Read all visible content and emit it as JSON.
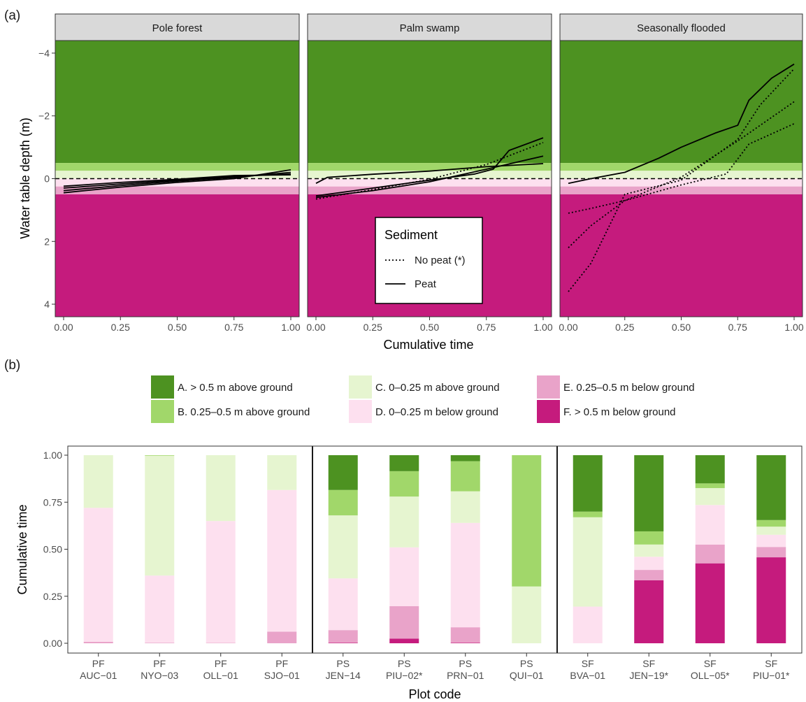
{
  "panel_labels": {
    "a": "(a)",
    "b": "(b)"
  },
  "colors": {
    "A": "#4d9221",
    "B": "#a1d76a",
    "C": "#e6f5d0",
    "D": "#fde0ef",
    "E": "#e9a3c9",
    "F": "#c51b7d"
  },
  "chart_data": [
    {
      "type": "line",
      "panel": "a",
      "facets": [
        "Pole forest",
        "Palm swamp",
        "Seasonally flooded"
      ],
      "xlabel": "Cumulative time",
      "ylabel": "Water table depth (m)",
      "xlim": [
        0,
        1
      ],
      "ylim": [
        -4.4,
        4.4
      ],
      "y_reversed": true,
      "x_ticks": [
        "0.00",
        "0.25",
        "0.50",
        "0.75",
        "1.00"
      ],
      "y_ticks": [
        "-4",
        "-2",
        "0",
        "2",
        "4"
      ],
      "background_bands": [
        {
          "class": "A",
          "from": -4.4,
          "to": -0.5
        },
        {
          "class": "B",
          "from": -0.5,
          "to": -0.25
        },
        {
          "class": "C",
          "from": -0.25,
          "to": 0
        },
        {
          "class": "D",
          "from": 0,
          "to": 0.25
        },
        {
          "class": "E",
          "from": 0.25,
          "to": 0.5
        },
        {
          "class": "F",
          "from": 0.5,
          "to": 4.4
        }
      ],
      "reference_line": 0,
      "legend": {
        "title": "Sediment",
        "position": "center",
        "entries": [
          {
            "label": "No peat (*)",
            "style": "dotted"
          },
          {
            "label": "Peat",
            "style": "solid"
          }
        ]
      },
      "series": [
        {
          "facet": "Pole forest",
          "sediment": "Peat",
          "x": [
            0,
            0.25,
            0.5,
            0.75,
            1.0
          ],
          "y": [
            0.45,
            0.27,
            0.12,
            0.0,
            -0.28
          ]
        },
        {
          "facet": "Pole forest",
          "sediment": "Peat",
          "x": [
            0,
            0.25,
            0.5,
            0.75,
            1.0
          ],
          "y": [
            0.38,
            0.22,
            0.08,
            -0.04,
            -0.2
          ]
        },
        {
          "facet": "Pole forest",
          "sediment": "Peat",
          "x": [
            0,
            0.25,
            0.5,
            0.75,
            1.0
          ],
          "y": [
            0.3,
            0.17,
            0.05,
            -0.07,
            -0.15
          ]
        },
        {
          "facet": "Pole forest",
          "sediment": "Peat",
          "x": [
            0,
            0.25,
            0.5,
            0.75,
            1.0
          ],
          "y": [
            0.24,
            0.12,
            0.02,
            -0.1,
            -0.12
          ]
        },
        {
          "facet": "Palm swamp",
          "sediment": "Peat",
          "x": [
            0,
            0.05,
            0.25,
            0.5,
            0.75,
            1.0
          ],
          "y": [
            0.15,
            -0.04,
            -0.14,
            -0.24,
            -0.38,
            -0.48
          ]
        },
        {
          "facet": "Palm swamp",
          "sediment": "Peat",
          "x": [
            0,
            0.25,
            0.5,
            0.7,
            0.78,
            0.85,
            1.0
          ],
          "y": [
            0.55,
            0.3,
            0.05,
            -0.15,
            -0.3,
            -0.9,
            -1.3
          ]
        },
        {
          "facet": "Palm swamp",
          "sediment": "Peat",
          "x": [
            0,
            0.25,
            0.5,
            0.75,
            1.0
          ],
          "y": [
            0.6,
            0.38,
            0.1,
            -0.3,
            -0.72
          ]
        },
        {
          "facet": "Palm swamp",
          "sediment": "No peat (*)",
          "x": [
            0,
            0.25,
            0.5,
            0.75,
            1.0
          ],
          "y": [
            0.65,
            0.35,
            0.02,
            -0.45,
            -1.15
          ]
        },
        {
          "facet": "Seasonally flooded",
          "sediment": "Peat",
          "x": [
            0,
            0.1,
            0.25,
            0.4,
            0.5,
            0.65,
            0.75,
            0.8,
            0.9,
            1.0
          ],
          "y": [
            0.15,
            0.0,
            -0.2,
            -0.65,
            -1.0,
            -1.45,
            -1.7,
            -2.5,
            -3.2,
            -3.65
          ]
        },
        {
          "facet": "Seasonally flooded",
          "sediment": "No peat (*)",
          "x": [
            0,
            0.1,
            0.25,
            0.5,
            0.75,
            0.85,
            1.0
          ],
          "y": [
            3.6,
            2.7,
            0.5,
            0.05,
            -1.25,
            -2.35,
            -3.5
          ]
        },
        {
          "facet": "Seasonally flooded",
          "sediment": "No peat (*)",
          "x": [
            0,
            0.1,
            0.25,
            0.5,
            0.75,
            1.0
          ],
          "y": [
            2.2,
            1.5,
            0.7,
            -0.05,
            -1.2,
            -2.45
          ]
        },
        {
          "facet": "Seasonally flooded",
          "sediment": "No peat (*)",
          "x": [
            0,
            0.1,
            0.25,
            0.5,
            0.7,
            0.8,
            1.0
          ],
          "y": [
            1.1,
            0.95,
            0.7,
            0.2,
            -0.15,
            -1.1,
            -1.75
          ]
        }
      ]
    },
    {
      "type": "bar",
      "stacked": true,
      "panel": "b",
      "xlabel": "Plot code",
      "ylabel": "Cumulative time",
      "ylim": [
        0,
        1
      ],
      "y_ticks": [
        "0.00",
        "0.25",
        "0.50",
        "0.75",
        "1.00"
      ],
      "categories": [
        [
          "PF",
          "AUC−01"
        ],
        [
          "PF",
          "NYO−03"
        ],
        [
          "PF",
          "OLL−01"
        ],
        [
          "PF",
          "SJO−01"
        ],
        [
          "PS",
          "JEN−14"
        ],
        [
          "PS",
          "PIU−02*"
        ],
        [
          "PS",
          "PRN−01"
        ],
        [
          "PS",
          "QUI−01"
        ],
        [
          "SF",
          "BVA−01"
        ],
        [
          "SF",
          "JEN−19*"
        ],
        [
          "SF",
          "OLL−05*"
        ],
        [
          "SF",
          "PIU−01*"
        ]
      ],
      "group_separators_after": [
        3,
        7
      ],
      "legend": {
        "position": "top",
        "entries": [
          {
            "key": "A",
            "label": "A. > 0.5 m above ground"
          },
          {
            "key": "B",
            "label": "B. 0.25–0.5 m above ground"
          },
          {
            "key": "C",
            "label": "C. 0–0.25 m above ground"
          },
          {
            "key": "D",
            "label": "D. 0–0.25 m below ground"
          },
          {
            "key": "E",
            "label": "E. 0.25–0.5 m below ground"
          },
          {
            "key": "F",
            "label": "F. > 0.5 m below ground"
          }
        ]
      },
      "stack_order_bottom_to_top": [
        "F",
        "E",
        "D",
        "C",
        "B",
        "A"
      ],
      "series": [
        {
          "name": "F",
          "values": [
            0,
            0,
            0,
            0,
            0.003,
            0.025,
            0.003,
            0,
            0,
            0.335,
            0.425,
            0.457
          ]
        },
        {
          "name": "E",
          "values": [
            0.008,
            0.003,
            0.002,
            0.062,
            0.067,
            0.172,
            0.082,
            0,
            0,
            0.055,
            0.1,
            0.055
          ]
        },
        {
          "name": "D",
          "values": [
            0.712,
            0.357,
            0.648,
            0.753,
            0.275,
            0.313,
            0.555,
            0,
            0.195,
            0.07,
            0.21,
            0.065
          ]
        },
        {
          "name": "C",
          "values": [
            0.28,
            0.637,
            0.35,
            0.185,
            0.335,
            0.27,
            0.168,
            0.302,
            0.475,
            0.065,
            0.09,
            0.043
          ]
        },
        {
          "name": "B",
          "values": [
            0,
            0.003,
            0,
            0,
            0.135,
            0.135,
            0.16,
            0.698,
            0.03,
            0.07,
            0.025,
            0.035
          ]
        },
        {
          "name": "A",
          "values": [
            0,
            0,
            0,
            0,
            0.185,
            0.085,
            0.032,
            0,
            0.3,
            0.405,
            0.15,
            0.345
          ]
        }
      ]
    }
  ]
}
